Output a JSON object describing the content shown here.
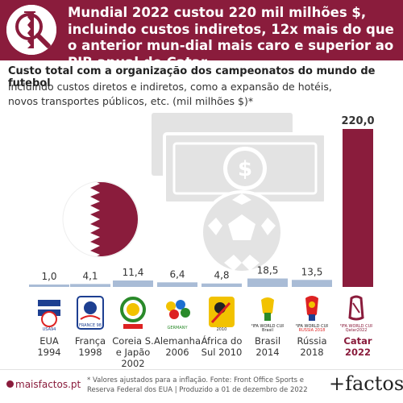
{
  "header": {
    "title": "Mundial 2022 custou 220 mil milhões $, incluindo custos indiretos, 12x mais do que o anterior mun-dial mais caro e superior ao PIB anual do Catar"
  },
  "subtitle": {
    "line1": "Custo total com a organização dos campeonatos do mundo de futebol",
    "line2": "incluindo custos diretos e indiretos, como a expansão de hotéis, novos transportes públicos, etc. (mil milhões $)*"
  },
  "logos": [
    {
      "name": "usa-94-logo-icon"
    },
    {
      "name": "france-98-logo-icon"
    },
    {
      "name": "korea-japan-2002-logo-icon"
    },
    {
      "name": "germany-2006-logo-icon"
    },
    {
      "name": "south-africa-2010-logo-icon"
    },
    {
      "name": "brasil-2014-logo-icon"
    },
    {
      "name": "russia-2018-logo-icon"
    },
    {
      "name": "qatar-2022-logo-icon"
    }
  ],
  "icons": [
    "qatar-flag-icon",
    "magnifier-icon",
    "money-icon",
    "football-icon"
  ],
  "colors": {
    "brand": "#8a1c3c",
    "bar": "#a9bcd6",
    "highlight_bar": "#8a1c3c",
    "icon_gray": "#e3e3e3"
  },
  "chart_data": {
    "type": "bar",
    "title": "Custo total com a organização dos campeonatos do mundo de futebol",
    "subtitle": "incluindo custos diretos e indiretos, como a expansão de hotéis, novos transportes públicos, etc. (mil milhões $)*",
    "categories": [
      "EUA\n1994",
      "França\n1998",
      "Coreia S.\ne Japão\n2002",
      "Alemanha\n2006",
      "África do\nSul 2010",
      "Brasil\n2014",
      "Rússia\n2018",
      "Catar\n2022"
    ],
    "values": [
      1.0,
      4.1,
      11.4,
      6.4,
      4.8,
      18.5,
      13.5,
      220.0
    ],
    "value_labels": [
      "1,0",
      "4,1",
      "11,4",
      "6,4",
      "4,8",
      "18,5",
      "13,5",
      "220,0"
    ],
    "highlight_index": 7,
    "ylim": [
      0,
      220
    ],
    "grid": false
  },
  "footer": {
    "site": "maisfactos.pt",
    "note": "* Valores ajustados para a inflação. Fonte: Front Office Sports e Reserva Federal dos EUA | Produzido a 01 de dezembro de 2022",
    "brand": "+factos"
  }
}
